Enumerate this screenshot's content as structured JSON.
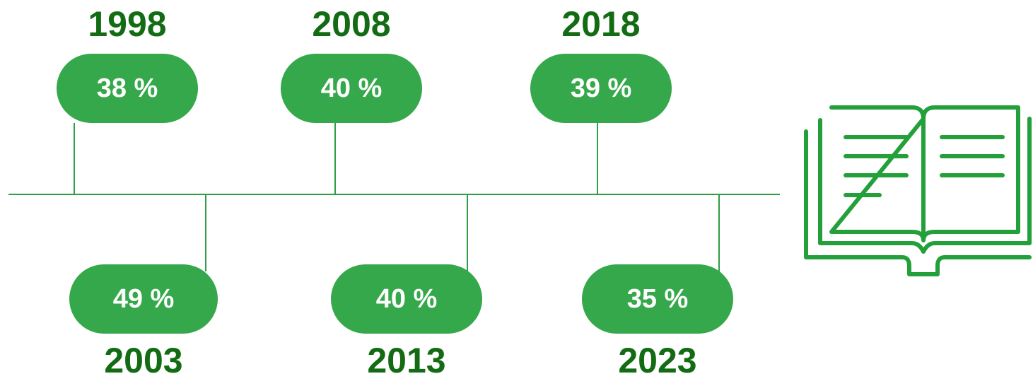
{
  "timeline": {
    "items": [
      {
        "year": "1998",
        "value": "38 %"
      },
      {
        "year": "2003",
        "value": "49 %"
      },
      {
        "year": "2008",
        "value": "40 %"
      },
      {
        "year": "2013",
        "value": "40 %"
      },
      {
        "year": "2018",
        "value": "39 %"
      },
      {
        "year": "2023",
        "value": "35 %"
      }
    ]
  }
}
